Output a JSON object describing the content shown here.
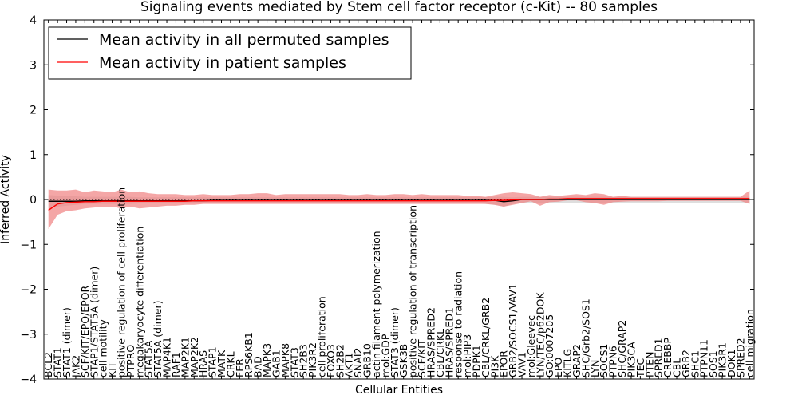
{
  "chart_data": {
    "type": "line",
    "title": "Signaling events mediated by Stem cell factor receptor (c-Kit) -- 80 samples",
    "xlabel": "Cellular Entities",
    "ylabel": "Inferred Activity",
    "ylim": [
      -4,
      4
    ],
    "yticks": [
      "−4",
      "−3",
      "−2",
      "−1",
      "0",
      "1",
      "2",
      "3",
      "4"
    ],
    "legend_position": "top-left",
    "categories": [
      "BCL2",
      "STAT1",
      "STAT1 (dimer)",
      "JAK2",
      "SCF/KIT/EPO/EPOR",
      "STAP1/STAT5A (dimer)",
      "cell motility",
      "KIT",
      "positive regulation of cell proliferation",
      "PTPRO",
      "megakaryocyte differentiation",
      "STAT5A",
      "STAT5A (dimer)",
      "MAP4K1",
      "RAF1",
      "MAP2K1",
      "MAP2K2",
      "HRAS",
      "STAP1",
      "MATK",
      "CRKL",
      "FER",
      "RPS6KB1",
      "BAD",
      "MAPK3",
      "GAB1",
      "MAPK8",
      "STAT3",
      "SH2B3",
      "PIK3R2",
      "cell proliferation",
      "FOXO3",
      "SH2B2",
      "AKT1",
      "SNAI2",
      "GRB10",
      "actin filament polymerization",
      "mol:GDP",
      "STAT3 (dimer)",
      "GSK3B",
      "positive regulation of transcription",
      "SCF/KIT",
      "HRAS/SPRED2",
      "CBL/CRKL",
      "HRAS/SPRED1",
      "response to radiation",
      "mol:PIP3",
      "PDPK1",
      "CBL/CRKL/GRB2",
      "PI3K",
      "EPOR",
      "GRB2/SOCS1/VAV1",
      "VAV1",
      "mol:Gleevec",
      "LYN/TEC/p62DOK",
      "GO:0007205",
      "EPO",
      "KITLG",
      "GRAP2",
      "SHC/Grb2/SOS1",
      "LYN",
      "SOCS1",
      "PTPN6",
      "SHC/GRAP2",
      "PIK3CA",
      "TEC",
      "PTEN",
      "SPRED1",
      "CREBBP",
      "CBL",
      "GRB2",
      "SHC1",
      "PTPN11",
      "SOS1",
      "PIK3R1",
      "DOK1",
      "SPRED2",
      "cell migration"
    ],
    "series": [
      {
        "name": "Mean activity in all permuted samples",
        "color": "#000000",
        "values": [
          -0.04,
          -0.04,
          -0.04,
          -0.04,
          -0.03,
          -0.03,
          -0.03,
          -0.03,
          -0.03,
          -0.03,
          -0.03,
          -0.03,
          -0.03,
          -0.03,
          -0.03,
          -0.03,
          -0.03,
          -0.03,
          -0.02,
          -0.02,
          -0.02,
          -0.02,
          -0.02,
          -0.02,
          -0.02,
          -0.02,
          -0.02,
          -0.02,
          -0.02,
          -0.02,
          -0.02,
          -0.02,
          -0.02,
          -0.02,
          -0.02,
          -0.02,
          -0.02,
          -0.02,
          -0.02,
          -0.02,
          -0.02,
          -0.02,
          -0.02,
          -0.02,
          -0.02,
          -0.02,
          -0.02,
          -0.02,
          -0.02,
          -0.02,
          -0.05,
          -0.03,
          0.0,
          0.0,
          0.0,
          0.0,
          0.0,
          0.0,
          0.0,
          0.0,
          0.0,
          0.0,
          0.0,
          0.0,
          0.0,
          0.0,
          0.0,
          0.0,
          0.0,
          0.0,
          0.0,
          0.0,
          0.0,
          0.0,
          0.0,
          0.0,
          0.0,
          0.0
        ],
        "band_low": [
          -0.2,
          -0.16,
          -0.14,
          -0.12,
          -0.1,
          -0.1,
          -0.1,
          -0.1,
          -0.1,
          -0.1,
          -0.09,
          -0.09,
          -0.09,
          -0.09,
          -0.09,
          -0.09,
          -0.09,
          -0.08,
          -0.08,
          -0.08,
          -0.08,
          -0.08,
          -0.08,
          -0.08,
          -0.08,
          -0.08,
          -0.08,
          -0.08,
          -0.08,
          -0.08,
          -0.08,
          -0.08,
          -0.08,
          -0.08,
          -0.08,
          -0.08,
          -0.08,
          -0.08,
          -0.08,
          -0.08,
          -0.08,
          -0.08,
          -0.08,
          -0.08,
          -0.08,
          -0.08,
          -0.08,
          -0.08,
          -0.1,
          -0.12,
          -0.16,
          -0.1,
          -0.08,
          -0.08,
          -0.08,
          -0.07,
          -0.07,
          -0.07,
          -0.07,
          -0.07,
          -0.07,
          -0.07,
          -0.07,
          -0.07,
          -0.07,
          -0.07,
          -0.07,
          -0.07,
          -0.07,
          -0.07,
          -0.07,
          -0.07,
          -0.07,
          -0.07,
          -0.07,
          -0.07,
          -0.07,
          -0.07
        ],
        "band_high": [
          0.1,
          0.09,
          0.08,
          0.07,
          0.06,
          0.06,
          0.06,
          0.06,
          0.06,
          0.06,
          0.05,
          0.05,
          0.05,
          0.05,
          0.05,
          0.05,
          0.05,
          0.05,
          0.05,
          0.05,
          0.05,
          0.05,
          0.05,
          0.05,
          0.05,
          0.05,
          0.05,
          0.05,
          0.05,
          0.05,
          0.05,
          0.05,
          0.05,
          0.05,
          0.05,
          0.05,
          0.05,
          0.05,
          0.05,
          0.05,
          0.05,
          0.05,
          0.05,
          0.05,
          0.05,
          0.05,
          0.05,
          0.05,
          0.05,
          0.06,
          0.06,
          0.05,
          0.06,
          0.06,
          0.06,
          0.06,
          0.06,
          0.06,
          0.06,
          0.06,
          0.06,
          0.06,
          0.06,
          0.06,
          0.06,
          0.06,
          0.06,
          0.06,
          0.06,
          0.06,
          0.06,
          0.06,
          0.06,
          0.06,
          0.06,
          0.06,
          0.06,
          0.06
        ]
      },
      {
        "name": "Mean activity in patient samples",
        "color": "#ff0000",
        "values": [
          -0.24,
          -0.1,
          -0.07,
          -0.06,
          -0.05,
          -0.05,
          -0.04,
          -0.04,
          -0.04,
          -0.04,
          -0.04,
          -0.04,
          -0.04,
          -0.04,
          -0.04,
          -0.04,
          -0.03,
          -0.03,
          -0.03,
          -0.03,
          -0.03,
          -0.03,
          -0.03,
          -0.03,
          -0.03,
          -0.03,
          -0.03,
          -0.03,
          -0.03,
          -0.03,
          -0.03,
          -0.03,
          -0.03,
          -0.03,
          -0.03,
          -0.03,
          -0.03,
          -0.03,
          -0.03,
          -0.03,
          -0.03,
          -0.03,
          -0.03,
          -0.03,
          -0.03,
          -0.03,
          -0.03,
          -0.03,
          -0.03,
          -0.02,
          -0.02,
          -0.01,
          0.0,
          0.0,
          0.0,
          0.01,
          0.01,
          0.02,
          0.02,
          0.02,
          0.02,
          0.02,
          0.02,
          0.02,
          0.02,
          0.02,
          0.02,
          0.02,
          0.02,
          0.02,
          0.02,
          0.02,
          0.02,
          0.02,
          0.02,
          0.02,
          0.02,
          0.02
        ],
        "band_low": [
          -0.66,
          -0.34,
          -0.26,
          -0.24,
          -0.2,
          -0.18,
          -0.16,
          -0.16,
          -0.2,
          -0.16,
          -0.2,
          -0.18,
          -0.16,
          -0.14,
          -0.14,
          -0.12,
          -0.12,
          -0.1,
          -0.1,
          -0.1,
          -0.1,
          -0.1,
          -0.1,
          -0.1,
          -0.1,
          -0.1,
          -0.1,
          -0.1,
          -0.1,
          -0.1,
          -0.1,
          -0.1,
          -0.1,
          -0.1,
          -0.1,
          -0.1,
          -0.1,
          -0.1,
          -0.1,
          -0.1,
          -0.1,
          -0.1,
          -0.1,
          -0.1,
          -0.1,
          -0.1,
          -0.1,
          -0.1,
          -0.1,
          -0.12,
          -0.16,
          -0.12,
          -0.08,
          -0.04,
          -0.14,
          -0.06,
          -0.05,
          -0.02,
          -0.02,
          -0.06,
          -0.08,
          -0.12,
          -0.06,
          -0.05,
          -0.04,
          -0.04,
          -0.04,
          -0.04,
          -0.03,
          -0.03,
          -0.03,
          -0.03,
          -0.03,
          -0.03,
          -0.03,
          -0.03,
          -0.03,
          -0.1
        ],
        "band_high": [
          0.22,
          0.2,
          0.2,
          0.22,
          0.16,
          0.2,
          0.18,
          0.16,
          0.22,
          0.16,
          0.18,
          0.14,
          0.12,
          0.12,
          0.12,
          0.1,
          0.1,
          0.12,
          0.1,
          0.1,
          0.1,
          0.12,
          0.12,
          0.14,
          0.14,
          0.1,
          0.12,
          0.12,
          0.12,
          0.12,
          0.12,
          0.12,
          0.12,
          0.1,
          0.1,
          0.12,
          0.1,
          0.1,
          0.12,
          0.12,
          0.1,
          0.12,
          0.1,
          0.1,
          0.1,
          0.1,
          0.08,
          0.08,
          0.06,
          0.1,
          0.14,
          0.16,
          0.14,
          0.12,
          0.06,
          0.1,
          0.08,
          0.1,
          0.12,
          0.1,
          0.14,
          0.12,
          0.06,
          0.08,
          0.06,
          0.06,
          0.06,
          0.06,
          0.06,
          0.06,
          0.06,
          0.06,
          0.06,
          0.06,
          0.06,
          0.06,
          0.06,
          0.2
        ]
      }
    ]
  }
}
